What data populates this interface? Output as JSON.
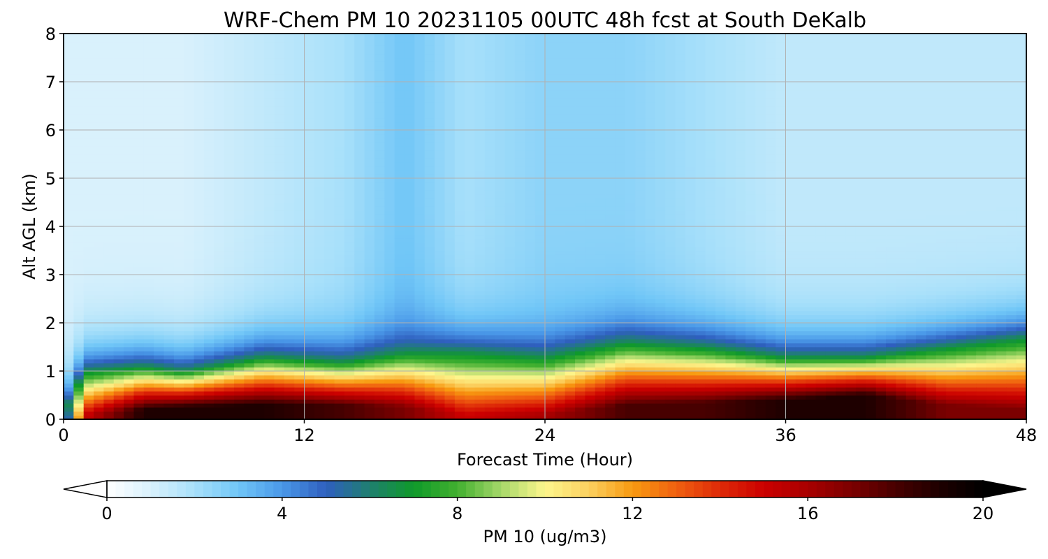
{
  "chart_data": {
    "type": "heatmap",
    "title": "WRF-Chem PM 10  20231105 00UTC 48h fcst at South DeKalb",
    "xlabel": "Forecast Time (Hour)",
    "ylabel": "Alt AGL (km)",
    "xlim": [
      0,
      48
    ],
    "ylim": [
      0,
      8
    ],
    "x_ticks": [
      "0",
      "12",
      "24",
      "36",
      "48"
    ],
    "y_ticks": [
      "0",
      "1",
      "2",
      "3",
      "4",
      "5",
      "6",
      "7",
      "8"
    ],
    "grid": true,
    "colorbar": {
      "label": "PM 10  (ug/m3)",
      "range": [
        0,
        20
      ],
      "extend": "both",
      "ticks": [
        "0",
        "4",
        "8",
        "12",
        "16",
        "20"
      ]
    },
    "colors": {
      "0": "#ffffff",
      "1": "#d9f1fc",
      "2": "#a8e0fa",
      "3": "#70c6f7",
      "4": "#4a98e8",
      "5": "#2f5fbf",
      "6": "#1f7f6f",
      "7": "#0f9a2a",
      "8": "#42b030",
      "9": "#a6d86a",
      "10": "#fdf68c",
      "11": "#fbd060",
      "12": "#f89a10",
      "13": "#f06010",
      "14": "#de2a08",
      "15": "#cc0000",
      "16": "#a80000",
      "17": "#7c0000",
      "18": "#480000",
      "19": "#1e0000",
      "20": "#000000"
    },
    "profiles": [
      {
        "t": 0,
        "h_surface_km": 0.0,
        "pm_surface": 2,
        "mixing_height_km": 0.1,
        "pm_free_troposphere": 1
      },
      {
        "t": 1,
        "h_surface_km": 0.1,
        "pm_surface": 15,
        "mixing_height_km": 1.0,
        "pm_free_troposphere": 1
      },
      {
        "t": 4,
        "h_surface_km": 0.2,
        "pm_surface": 19,
        "mixing_height_km": 1.1,
        "pm_free_troposphere": 1
      },
      {
        "t": 6,
        "h_surface_km": 0.25,
        "pm_surface": 19,
        "mixing_height_km": 1.0,
        "pm_free_troposphere": 1
      },
      {
        "t": 10,
        "h_surface_km": 0.3,
        "pm_surface": 19,
        "mixing_height_km": 1.3,
        "pm_free_troposphere": 1.5
      },
      {
        "t": 14,
        "h_surface_km": 0.3,
        "pm_surface": 18,
        "mixing_height_km": 1.2,
        "pm_free_troposphere": 2
      },
      {
        "t": 17,
        "h_surface_km": 0.25,
        "pm_surface": 17,
        "mixing_height_km": 1.4,
        "pm_free_troposphere": 3
      },
      {
        "t": 20,
        "h_surface_km": 0.1,
        "pm_surface": 15,
        "mixing_height_km": 1.4,
        "pm_free_troposphere": 2
      },
      {
        "t": 24,
        "h_surface_km": 0.1,
        "pm_surface": 16,
        "mixing_height_km": 1.3,
        "pm_free_troposphere": 2.5
      },
      {
        "t": 28,
        "h_surface_km": 0.3,
        "pm_surface": 18,
        "mixing_height_km": 1.6,
        "pm_free_troposphere": 2.5
      },
      {
        "t": 32,
        "h_surface_km": 0.35,
        "pm_surface": 18,
        "mixing_height_km": 1.5,
        "pm_free_troposphere": 2
      },
      {
        "t": 36,
        "h_surface_km": 0.4,
        "pm_surface": 19,
        "mixing_height_km": 1.3,
        "pm_free_troposphere": 1.5
      },
      {
        "t": 40,
        "h_surface_km": 0.5,
        "pm_surface": 19,
        "mixing_height_km": 1.3,
        "pm_free_troposphere": 1.5
      },
      {
        "t": 44,
        "h_surface_km": 0.3,
        "pm_surface": 17,
        "mixing_height_km": 1.5,
        "pm_free_troposphere": 1.5
      },
      {
        "t": 48,
        "h_surface_km": 0.2,
        "pm_surface": 17,
        "mixing_height_km": 1.7,
        "pm_free_troposphere": 1.5
      }
    ]
  }
}
